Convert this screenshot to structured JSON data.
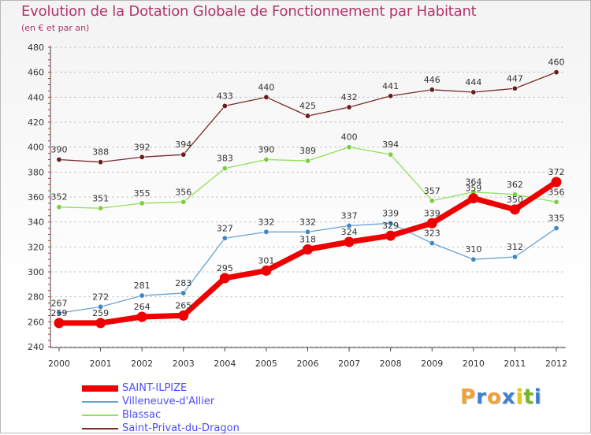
{
  "title": "Evolution de la Dotation Globale de Fonctionnement par Habitant",
  "subtitle": "(en € et par an)",
  "logo": {
    "letters": [
      "P",
      "r",
      "o",
      "x",
      "i",
      "t",
      "i"
    ],
    "colors": [
      "#f0a23a",
      "#3d7fd1",
      "#f0a23a",
      "#3d7fd1",
      "#e3c81c",
      "#76b82a",
      "#3d7fd1"
    ]
  },
  "chart_data": {
    "type": "line",
    "title": "Evolution de la Dotation Globale de Fonctionnement par Habitant",
    "ylabel": "(en € et par an)",
    "xlabel": "",
    "ylim": [
      240,
      480
    ],
    "yticks": [
      240,
      260,
      280,
      300,
      320,
      340,
      360,
      380,
      400,
      420,
      440,
      460,
      480
    ],
    "grid": "y dashed",
    "legend_position": "bottom-left",
    "categories": [
      "2000",
      "2001",
      "2002",
      "2003",
      "2004",
      "2005",
      "2006",
      "2007",
      "2008",
      "2009",
      "2010",
      "2011",
      "2012"
    ],
    "series": [
      {
        "name": "Saint-Privat-du-Dragon",
        "color": "#7a2a2a",
        "marker": "#6b1c1c",
        "width": 1.3,
        "values": [
          390,
          388,
          392,
          394,
          433,
          440,
          425,
          432,
          441,
          446,
          444,
          447,
          460
        ]
      },
      {
        "name": "Blassac",
        "color": "#8fe05a",
        "marker": "#7ccf40",
        "width": 1.3,
        "values": [
          352,
          351,
          355,
          356,
          383,
          390,
          389,
          400,
          394,
          357,
          364,
          362,
          356
        ]
      },
      {
        "name": "Villeneuve-d'Allier",
        "color": "#6aa3cf",
        "marker": "#3f86c2",
        "width": 1.3,
        "values": [
          267,
          272,
          281,
          283,
          327,
          332,
          332,
          337,
          339,
          323,
          310,
          312,
          335
        ]
      },
      {
        "name": "SAINT-ILPIZE",
        "color": "#ee0000",
        "marker": "#ee0000",
        "width": 7,
        "values": [
          259,
          259,
          264,
          265,
          295,
          301,
          318,
          324,
          329,
          339,
          359,
          350,
          372
        ]
      }
    ],
    "legend_order": [
      "SAINT-ILPIZE",
      "Villeneuve-d'Allier",
      "Blassac",
      "Saint-Privat-du-Dragon"
    ]
  }
}
